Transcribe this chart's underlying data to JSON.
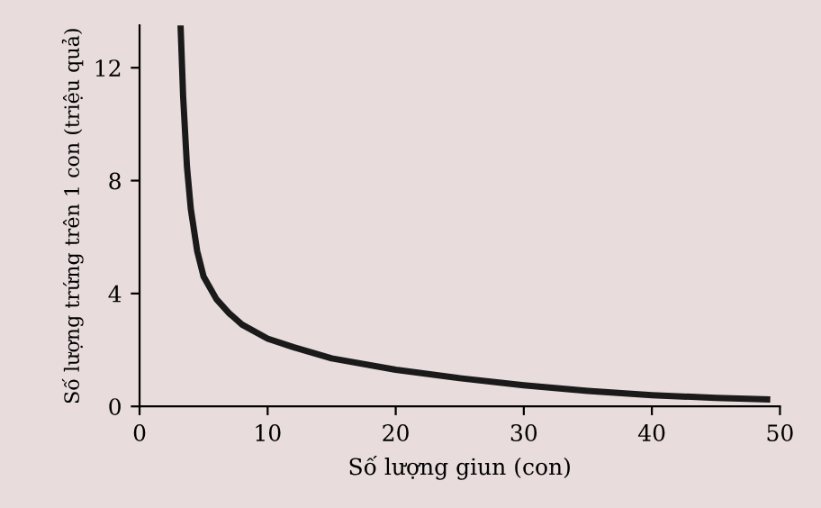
{
  "chart_data": {
    "type": "line",
    "xlabel": "Số lượng giun (con)",
    "ylabel": "Số lượng trứng trên 1 con (triệu quả)",
    "xlim": [
      0,
      50
    ],
    "ylim": [
      0,
      13.5
    ],
    "xticks": [
      0,
      10,
      20,
      30,
      40,
      50
    ],
    "yticks": [
      0,
      4,
      8,
      12
    ],
    "grid": false,
    "marker": "none",
    "line_style": "solid",
    "series": [
      {
        "color": "#1a1a1a",
        "x": [
          3.2,
          3.4,
          3.7,
          4,
          4.5,
          5,
          6,
          7,
          8,
          10,
          12,
          15,
          20,
          25,
          30,
          35,
          40,
          45,
          49
        ],
        "values": [
          13.5,
          11,
          8.5,
          7,
          5.5,
          4.6,
          3.8,
          3.3,
          2.9,
          2.4,
          2.1,
          1.7,
          1.3,
          1.0,
          0.75,
          0.55,
          0.4,
          0.3,
          0.25
        ]
      }
    ]
  }
}
